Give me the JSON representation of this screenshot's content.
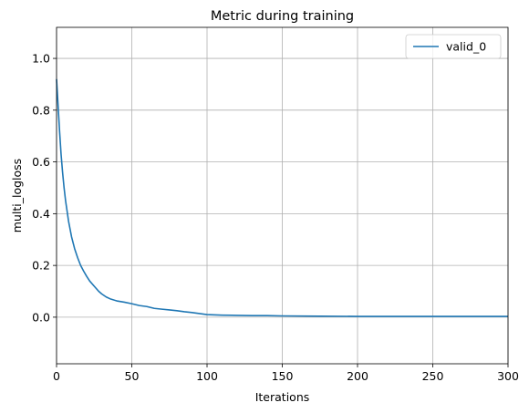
{
  "chart_data": {
    "type": "line",
    "title": "Metric during training",
    "xlabel": "Iterations",
    "ylabel": "multi_logloss",
    "xlim": [
      0,
      300
    ],
    "ylim": [
      -0.18,
      1.12
    ],
    "xticks": [
      0,
      50,
      100,
      150,
      200,
      250,
      300
    ],
    "yticks": [
      0.0,
      0.2,
      0.4,
      0.6,
      0.8,
      1.0
    ],
    "xtick_labels": [
      "0",
      "50",
      "100",
      "150",
      "200",
      "250",
      "300"
    ],
    "ytick_labels": [
      "0.0",
      "0.2",
      "0.4",
      "0.6",
      "0.8",
      "1.0"
    ],
    "grid": true,
    "legend_position": "top-right",
    "series": [
      {
        "name": "valid_0",
        "color": "#1f77b4",
        "x": [
          0,
          1,
          2,
          3,
          4,
          5,
          6,
          7,
          8,
          9,
          10,
          12,
          14,
          16,
          18,
          20,
          22,
          25,
          28,
          30,
          33,
          36,
          40,
          45,
          50,
          55,
          60,
          65,
          70,
          75,
          80,
          85,
          90,
          95,
          100,
          110,
          120,
          130,
          140,
          150,
          175,
          200,
          225,
          250,
          275,
          300
        ],
        "y": [
          0.92,
          0.82,
          0.72,
          0.63,
          0.56,
          0.5,
          0.45,
          0.41,
          0.37,
          0.34,
          0.31,
          0.265,
          0.23,
          0.2,
          0.178,
          0.158,
          0.14,
          0.12,
          0.1,
          0.09,
          0.078,
          0.07,
          0.063,
          0.058,
          0.052,
          0.045,
          0.041,
          0.034,
          0.031,
          0.028,
          0.025,
          0.021,
          0.018,
          0.014,
          0.01,
          0.008,
          0.007,
          0.006,
          0.006,
          0.005,
          0.004,
          0.003,
          0.003,
          0.003,
          0.003,
          0.003
        ]
      }
    ]
  }
}
